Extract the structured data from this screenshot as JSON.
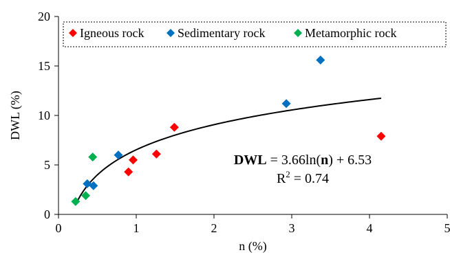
{
  "chart_data": {
    "type": "scatter",
    "xlabel": "n (%)",
    "ylabel": "DWL (%)",
    "xlim": [
      0,
      5
    ],
    "ylim": [
      0,
      20
    ],
    "x_ticks": [
      "0",
      "1",
      "2",
      "3",
      "4",
      "5"
    ],
    "y_ticks": [
      "0",
      "5",
      "10",
      "15",
      "20"
    ],
    "grid": false,
    "legend_position": "top",
    "series": [
      {
        "name": "Igneous rock",
        "color": "#ff0000",
        "marker": "diamond",
        "points": [
          [
            0.9,
            4.3
          ],
          [
            0.96,
            5.5
          ],
          [
            1.26,
            6.1
          ],
          [
            1.49,
            8.8
          ],
          [
            4.15,
            7.9
          ]
        ]
      },
      {
        "name": "Sedimentary rock",
        "color": "#0070c0",
        "marker": "diamond",
        "points": [
          [
            0.37,
            3.1
          ],
          [
            0.45,
            2.9
          ],
          [
            0.77,
            6.0
          ],
          [
            2.93,
            11.2
          ],
          [
            3.37,
            15.6
          ]
        ]
      },
      {
        "name": "Metamorphic rock",
        "color": "#00b050",
        "marker": "diamond",
        "points": [
          [
            0.22,
            1.3
          ],
          [
            0.35,
            1.9
          ],
          [
            0.44,
            5.8
          ]
        ]
      }
    ],
    "trendline": {
      "type": "logarithmic",
      "a": 3.66,
      "b": 6.53,
      "x_range": [
        0.22,
        4.15
      ],
      "color": "#000000"
    },
    "annotation": {
      "eq_bold_1": "DWL",
      "eq_part_2": " = 3.66ln(",
      "eq_bold_3": "n",
      "eq_part_4": ") + 6.53",
      "r2_prefix": "R",
      "r2_sup": "2",
      "r2_suffix": " = 0.74"
    }
  }
}
